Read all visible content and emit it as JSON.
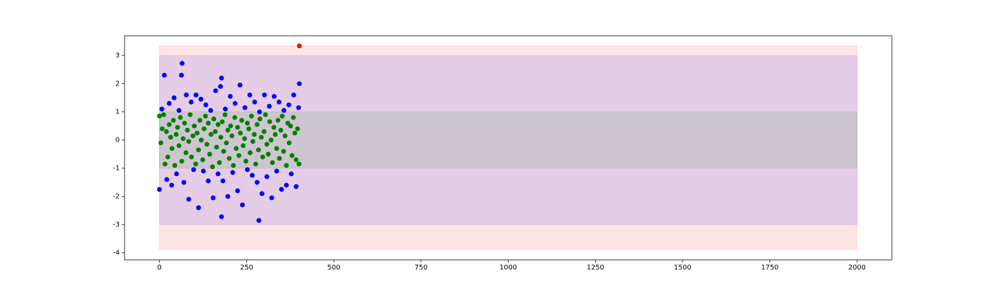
{
  "chart_data": {
    "type": "scatter",
    "xlim": [
      -100,
      2100
    ],
    "xticks": [
      0,
      250,
      500,
      750,
      1000,
      1250,
      1500,
      1750,
      2000
    ],
    "ylim": [
      -4.25,
      3.7
    ],
    "yticks": [
      -4,
      -3,
      -2,
      -1,
      0,
      1,
      2,
      3
    ],
    "bands": [
      {
        "xmin": 0,
        "xmax": 2000,
        "ymin": -3.88,
        "ymax": 3.34,
        "color": "#ff0000"
      },
      {
        "xmin": 0,
        "xmax": 2000,
        "ymin": -3,
        "ymax": 3,
        "color": "#0000ff"
      },
      {
        "xmin": 0,
        "xmax": 2000,
        "ymin": -1,
        "ymax": 1,
        "color": "#008000"
      }
    ],
    "series": [
      {
        "color": "#008000",
        "x": [
          0,
          4,
          8,
          12,
          16,
          20,
          24,
          28,
          32,
          36,
          40,
          44,
          48,
          52,
          56,
          60,
          64,
          68,
          72,
          76,
          80,
          84,
          88,
          92,
          96,
          100,
          104,
          108,
          112,
          116,
          120,
          124,
          128,
          132,
          136,
          140,
          144,
          148,
          152,
          156,
          160,
          164,
          168,
          172,
          176,
          180,
          184,
          188,
          192,
          196,
          200,
          204,
          208,
          212,
          216,
          220,
          224,
          228,
          232,
          236,
          240,
          244,
          248,
          252,
          256,
          260,
          264,
          268,
          272,
          276,
          280,
          284,
          288,
          292,
          296,
          300,
          304,
          308,
          312,
          316,
          320,
          324,
          328,
          332,
          336,
          340,
          344,
          348,
          352,
          356,
          360,
          364,
          368,
          372,
          376,
          380,
          384,
          388,
          392,
          396,
          400
        ],
        "values": [
          0.85,
          -0.1,
          0.4,
          0.9,
          -0.85,
          0.3,
          -0.6,
          0.55,
          0.1,
          -0.3,
          0.7,
          -0.9,
          0.2,
          0.45,
          -0.2,
          0.8,
          -0.75,
          0.05,
          0.6,
          -0.45,
          0.35,
          -0.05,
          0.9,
          -0.6,
          0.15,
          0.5,
          -0.85,
          0.25,
          -0.35,
          0.7,
          0.0,
          -0.7,
          0.4,
          0.85,
          -0.15,
          0.6,
          -0.5,
          0.2,
          -0.95,
          0.75,
          0.3,
          -0.25,
          0.55,
          -0.8,
          0.1,
          0.65,
          -0.4,
          0.9,
          -0.1,
          0.35,
          -0.65,
          0.5,
          0.15,
          -0.9,
          0.8,
          -0.3,
          0.45,
          -0.55,
          0.25,
          0.7,
          -0.2,
          0.05,
          -0.75,
          0.6,
          0.4,
          -0.45,
          0.85,
          -0.05,
          0.2,
          -0.85,
          0.55,
          -0.35,
          0.75,
          0.1,
          -0.6,
          0.3,
          0.9,
          -0.15,
          -0.5,
          0.65,
          0.0,
          -0.8,
          0.45,
          0.2,
          -0.3,
          0.7,
          -0.65,
          0.35,
          0.85,
          -0.4,
          0.15,
          -0.9,
          0.6,
          -0.1,
          0.5,
          -0.55,
          0.8,
          0.25,
          -0.7,
          0.4,
          -0.85
        ]
      },
      {
        "color": "#0000ff",
        "x": [
          0,
          7,
          14,
          21,
          28,
          35,
          42,
          49,
          56,
          63,
          70,
          77,
          84,
          91,
          98,
          105,
          112,
          119,
          126,
          133,
          140,
          147,
          154,
          161,
          168,
          175,
          182,
          189,
          196,
          203,
          210,
          217,
          224,
          231,
          238,
          245,
          252,
          259,
          266,
          273,
          280,
          287,
          294,
          301,
          308,
          315,
          322,
          329,
          336,
          343,
          350,
          357,
          364,
          371,
          378,
          385,
          392,
          399,
          65,
          178,
          178,
          285,
          401
        ],
        "values": [
          -1.75,
          1.1,
          2.3,
          -1.4,
          1.3,
          -1.6,
          1.5,
          -1.2,
          1.05,
          2.3,
          -1.5,
          1.6,
          -2.1,
          1.35,
          -1.05,
          1.6,
          -2.4,
          1.45,
          -1.1,
          1.25,
          -1.45,
          1.05,
          -2.05,
          1.75,
          -1.2,
          1.9,
          -1.45,
          1.1,
          -2.0,
          1.55,
          -1.15,
          1.3,
          -1.8,
          1.95,
          -2.3,
          1.15,
          -1.05,
          1.6,
          -1.25,
          1.35,
          -1.5,
          1.0,
          -1.9,
          1.6,
          -1.3,
          1.2,
          -2.05,
          1.55,
          -1.1,
          1.35,
          -1.75,
          1.05,
          -1.6,
          1.25,
          -1.2,
          1.6,
          -1.65,
          1.15,
          2.72,
          2.2,
          -2.72,
          -2.85,
          2.0
        ]
      },
      {
        "color": "#ff0000",
        "x": [
          401
        ],
        "values": [
          3.34
        ]
      }
    ]
  }
}
